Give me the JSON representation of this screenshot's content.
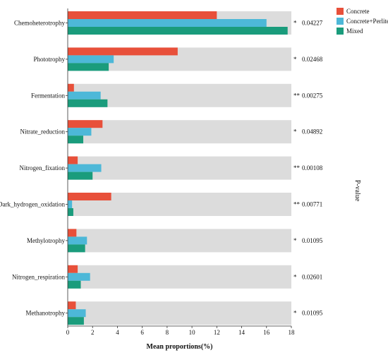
{
  "chart_data": {
    "type": "bar",
    "orientation": "horizontal",
    "categories": [
      "Chemoheterotrophy",
      "Phototrophy",
      "Fermentation",
      "Nitrate_reduction",
      "Nitrogen_fixation",
      "Dark_hydrogen_oxidation",
      "Methylotrophy",
      "Nitrogen_respiration",
      "Methanotrophy"
    ],
    "series": [
      {
        "name": "Concrete",
        "color": "#e8503a",
        "values": [
          12.0,
          8.85,
          0.5,
          2.8,
          0.8,
          3.5,
          0.7,
          0.8,
          0.65
        ]
      },
      {
        "name": "Concrete+Perlite",
        "color": "#4db8d8",
        "values": [
          16.0,
          3.7,
          2.65,
          1.9,
          2.7,
          0.35,
          1.55,
          1.8,
          1.45
        ]
      },
      {
        "name": "Mixed",
        "color": "#1a9c7c",
        "values": [
          17.7,
          3.3,
          3.2,
          1.25,
          2.0,
          0.45,
          1.4,
          1.05,
          1.3
        ]
      }
    ],
    "significance": [
      "*",
      "*",
      "**",
      "*",
      "**",
      "**",
      "*",
      "*",
      "*"
    ],
    "p_values": [
      "0.04227",
      "0.02468",
      "0.00275",
      "0.04892",
      "0.00108",
      "0.00771",
      "0.01095",
      "0.02601",
      "0.01095"
    ],
    "xlabel": "Mean proportions(%)",
    "side_label": "P-value",
    "xlim": [
      0,
      18
    ],
    "xticks": [
      "0",
      "2",
      "4",
      "6",
      "8",
      "10",
      "12",
      "14",
      "16",
      "18"
    ],
    "band_color": "#dcdcdc",
    "legend_position": "top-right",
    "grid": false
  }
}
